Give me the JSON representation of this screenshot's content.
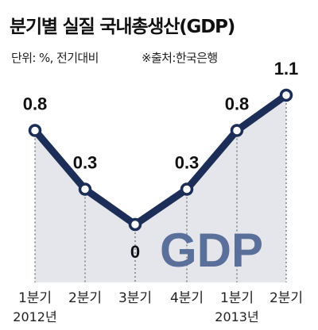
{
  "header": {
    "title": "분기별 실질 국내총생산(GDP)",
    "unit": "단위: %, 전기대비",
    "source": "※출처:한국은행"
  },
  "watermark": "GDP",
  "colors": {
    "line": "#1c2d57",
    "area": "#e4e6ec",
    "marker_fill": "#ffffff",
    "watermark": "#5a6f9a",
    "dotted": "#666666"
  },
  "chart_data": {
    "type": "line",
    "title": "분기별 실질 국내총생산(GDP)",
    "categories": [
      "1분기",
      "2분기",
      "3분기",
      "4분기",
      "1분기",
      "2분기"
    ],
    "year_labels": [
      "2012년",
      "",
      "",
      "",
      "2013년",
      ""
    ],
    "series": [
      {
        "values": [
          0.8,
          0.3,
          0.0,
          0.3,
          0.8,
          1.1
        ]
      }
    ],
    "data_labels": [
      "0.8",
      "0.3",
      "0",
      "0.3",
      "0.8",
      "1.1"
    ],
    "ylim": [
      0,
      1.1
    ],
    "grid": false,
    "legend": "none"
  }
}
